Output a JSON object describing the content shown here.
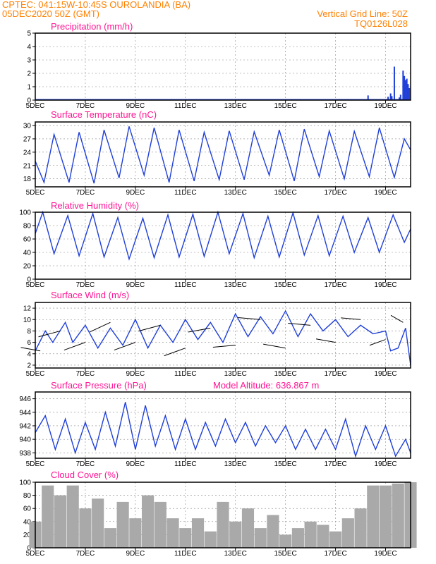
{
  "header": {
    "left_line1": "CPTEC:   041:15W-10:45S   OUROLANDIA (BA)",
    "left_line2": "05DEC2020 50Z (GMT)",
    "right_line1": "Vertical Grid Line: 50Z",
    "right_line2": "TQ0126L028"
  },
  "colors": {
    "header": "#ff8000",
    "panel_title": "#ff1493",
    "series": "#1f3fd8",
    "bars": "#1f3fd8",
    "cloud": "#a9a9a9",
    "arrows": "#000000"
  },
  "x_axis": {
    "days_range": [
      0,
      15
    ],
    "tick_days": [
      0,
      2,
      4,
      6,
      8,
      10,
      12,
      14
    ],
    "tick_labels": [
      "5DEC",
      "7DEC",
      "9DEC",
      "11DEC",
      "13DEC",
      "15DEC",
      "17DEC",
      "19DEC"
    ]
  },
  "chart_data": [
    {
      "type": "bar",
      "title": "Precipitation (mm/h)",
      "ylim": [
        0,
        5
      ],
      "yticks": [
        0,
        1,
        2,
        3,
        4,
        5
      ],
      "x_days": [
        13.3,
        14.1,
        14.2,
        14.25,
        14.35,
        14.55,
        14.6,
        14.7,
        14.75,
        14.8,
        14.85,
        14.9,
        14.95
      ],
      "values": [
        0.35,
        0.25,
        0.5,
        0.3,
        2.5,
        0.2,
        0.4,
        2.2,
        1.8,
        1.5,
        1.6,
        1.2,
        0.9
      ]
    },
    {
      "type": "line",
      "title": "Surface Temperature (nC)",
      "ylim": [
        16.2,
        30.8
      ],
      "yticks": [
        18,
        21,
        24,
        27,
        30
      ],
      "x_days": [
        0,
        0.35,
        0.75,
        1.35,
        1.75,
        2.35,
        2.75,
        3.35,
        3.75,
        4.35,
        4.75,
        5.35,
        5.75,
        6.35,
        6.75,
        7.35,
        7.75,
        8.35,
        8.75,
        9.35,
        9.75,
        10.35,
        10.75,
        11.35,
        11.75,
        12.35,
        12.75,
        13.35,
        13.75,
        14.35,
        14.75,
        15
      ],
      "values": [
        22,
        17.2,
        28,
        17.2,
        28.5,
        17,
        29,
        18.2,
        29.8,
        18.8,
        29.5,
        17.2,
        29,
        17.5,
        28.5,
        17.8,
        28.8,
        17.8,
        28.6,
        18.8,
        29,
        17.5,
        29.2,
        18.5,
        28.8,
        18,
        28.7,
        18.5,
        29.5,
        18.3,
        27,
        24.5
      ]
    },
    {
      "type": "line",
      "title": "Relative Humidity (%)",
      "ylim": [
        0,
        100
      ],
      "yticks": [
        0,
        20,
        40,
        60,
        80,
        100
      ],
      "x_days": [
        0,
        0.3,
        0.75,
        1.3,
        1.75,
        2.3,
        2.75,
        3.3,
        3.75,
        4.3,
        4.75,
        5.3,
        5.75,
        6.3,
        6.75,
        7.3,
        7.75,
        8.3,
        8.75,
        9.3,
        9.75,
        10.3,
        10.75,
        11.3,
        11.75,
        12.3,
        12.75,
        13.3,
        13.75,
        14.3,
        14.75,
        15
      ],
      "values": [
        68,
        100,
        38,
        95,
        35,
        98,
        33,
        92,
        30,
        91,
        32,
        96,
        33,
        97,
        34,
        100,
        38,
        98,
        32,
        94,
        33,
        99,
        36,
        95,
        35,
        94,
        40,
        92,
        40,
        96,
        55,
        75
      ]
    },
    {
      "type": "line",
      "title": "Surface Wind (m/s)",
      "ylim": [
        1.5,
        13
      ],
      "yticks": [
        2,
        4,
        6,
        8,
        10,
        12
      ],
      "x_days": [
        0,
        0.4,
        0.7,
        1.2,
        1.5,
        2,
        2.5,
        3,
        3.5,
        4,
        4.5,
        5,
        5.5,
        6,
        6.5,
        7,
        7.5,
        8,
        8.5,
        9,
        9.5,
        10,
        10.5,
        11,
        11.5,
        12,
        12.5,
        13,
        13.5,
        14,
        14.2,
        14.5,
        14.8,
        15
      ],
      "values": [
        4.5,
        8,
        6,
        9.5,
        6,
        9,
        5,
        8.5,
        5.5,
        10,
        5,
        9,
        6,
        10,
        6.5,
        9.5,
        6,
        11,
        7,
        10.5,
        7.5,
        11.5,
        7,
        11,
        8,
        10,
        7,
        9,
        7.5,
        8,
        4.5,
        5,
        8.5,
        2
      ],
      "arrows": {
        "x_days": [
          0.2,
          1.0,
          2.0,
          3.0,
          4.0,
          5.0,
          6.0,
          7.0,
          8.0,
          9.0,
          10.0,
          11.0,
          12.0,
          13.0,
          14.0,
          14.7
        ],
        "speed": [
          5,
          6,
          6,
          6,
          6,
          6,
          6,
          6,
          6,
          6,
          6,
          6,
          5,
          5,
          4,
          3
        ],
        "angle_deg": [
          170,
          195,
          200,
          205,
          200,
          195,
          200,
          190,
          185,
          175,
          170,
          175,
          170,
          175,
          200,
          150
        ]
      }
    },
    {
      "type": "line",
      "title": "Surface Pressure (hPa)",
      "annotation": "Model Altitude: 636.867 m",
      "ylim": [
        937.2,
        947
      ],
      "yticks": [
        938,
        940,
        942,
        944,
        946
      ],
      "x_days": [
        0,
        0.4,
        0.8,
        1.2,
        1.6,
        2,
        2.4,
        2.8,
        3.2,
        3.6,
        4,
        4.4,
        4.8,
        5.2,
        5.6,
        6,
        6.4,
        6.8,
        7.2,
        7.6,
        8,
        8.4,
        8.8,
        9.2,
        9.6,
        10,
        10.4,
        10.8,
        11.2,
        11.6,
        12,
        12.4,
        12.8,
        13.2,
        13.6,
        14,
        14.4,
        14.8,
        15
      ],
      "values": [
        941,
        943.5,
        938.5,
        943,
        938,
        942.5,
        938.5,
        944,
        939,
        945.5,
        938.5,
        945,
        939,
        943.5,
        938.5,
        943,
        938.5,
        942.5,
        939,
        943,
        939.5,
        942.5,
        939,
        942,
        939.5,
        942,
        938.5,
        941.5,
        938.5,
        941.5,
        938.5,
        943,
        937.5,
        942,
        938.5,
        942,
        937.5,
        940,
        938
      ]
    },
    {
      "type": "area",
      "title": "Cloud Cover (%)",
      "ylim": [
        0,
        100
      ],
      "yticks": [
        0,
        20,
        40,
        60,
        80,
        100
      ],
      "x_days": [
        0,
        0.5,
        1.0,
        1.5,
        2.0,
        2.5,
        3.0,
        3.5,
        4.0,
        4.5,
        5.0,
        5.5,
        6.0,
        6.5,
        7.0,
        7.5,
        8.0,
        8.5,
        9.0,
        9.5,
        10.0,
        10.5,
        11.0,
        11.5,
        12.0,
        12.5,
        13.0,
        13.5,
        14.0,
        14.5,
        15
      ],
      "values": [
        40,
        95,
        80,
        95,
        60,
        75,
        30,
        70,
        45,
        80,
        70,
        45,
        30,
        45,
        25,
        70,
        40,
        60,
        30,
        50,
        20,
        30,
        40,
        35,
        25,
        45,
        60,
        95,
        95,
        98,
        100
      ]
    }
  ]
}
